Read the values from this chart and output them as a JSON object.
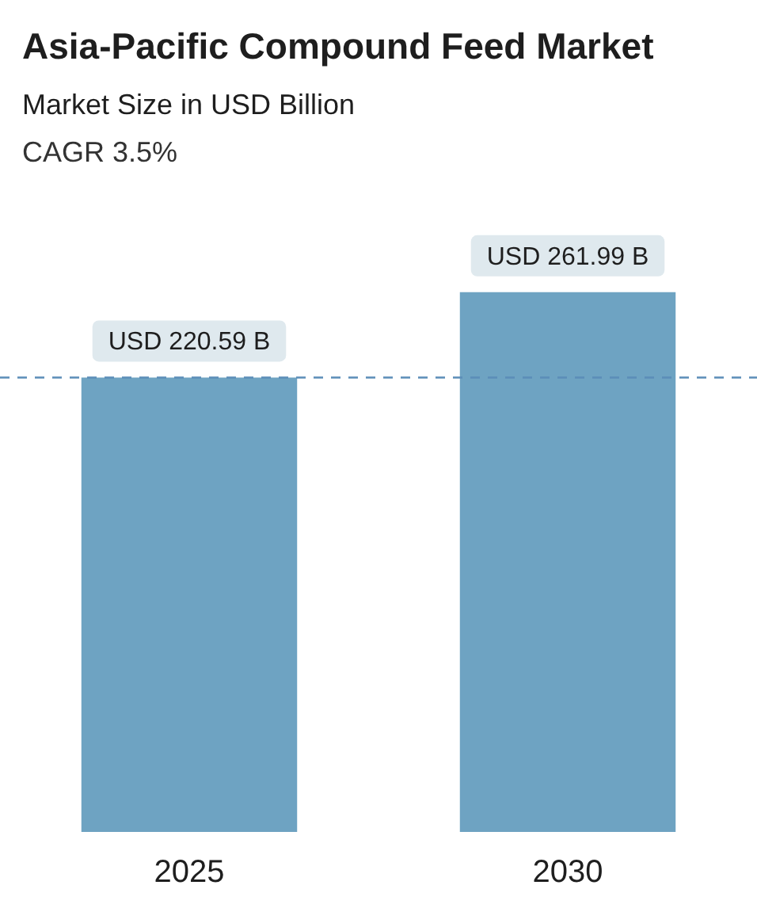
{
  "chart_data": {
    "type": "bar",
    "title": "Asia-Pacific Compound Feed Market",
    "subtitle": "Market Size in USD Billion",
    "annotations": [
      "CAGR 3.5%"
    ],
    "categories": [
      "2025",
      "2030"
    ],
    "values": [
      220.59,
      261.99
    ],
    "value_labels": [
      "USD 220.59 B",
      "USD 261.99 B"
    ],
    "color": "#6ea3c2",
    "tick_labels": "x",
    "ref_lines": [
      {
        "axis": "y",
        "value": 220.59,
        "color": "#5b8db8",
        "line_style": "dashed"
      }
    ],
    "grid": false,
    "legend": false
  }
}
